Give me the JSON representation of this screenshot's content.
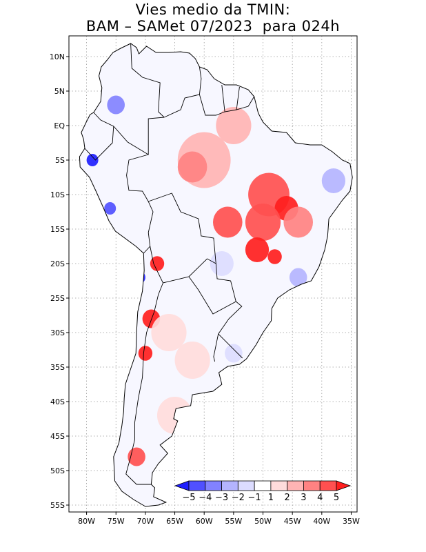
{
  "title": {
    "line1": "Vies medio da TMIN:",
    "line2": "BAM – SAMet 07/2023  para 024h"
  },
  "map": {
    "lon_range": [
      -83,
      -34
    ],
    "lat_range": [
      -56,
      13
    ],
    "grid": "dotted",
    "lon_ticks": [
      {
        "value": -80,
        "label": "80W"
      },
      {
        "value": -75,
        "label": "75W"
      },
      {
        "value": -70,
        "label": "70W"
      },
      {
        "value": -65,
        "label": "65W"
      },
      {
        "value": -60,
        "label": "60W"
      },
      {
        "value": -55,
        "label": "55W"
      },
      {
        "value": -50,
        "label": "50W"
      },
      {
        "value": -45,
        "label": "45W"
      },
      {
        "value": -40,
        "label": "40W"
      },
      {
        "value": -35,
        "label": "35W"
      }
    ],
    "lat_ticks": [
      {
        "value": 10,
        "label": "10N"
      },
      {
        "value": 5,
        "label": "5N"
      },
      {
        "value": 0,
        "label": "EQ"
      },
      {
        "value": -5,
        "label": "5S"
      },
      {
        "value": -10,
        "label": "10S"
      },
      {
        "value": -15,
        "label": "15S"
      },
      {
        "value": -20,
        "label": "20S"
      },
      {
        "value": -25,
        "label": "25S"
      },
      {
        "value": -30,
        "label": "30S"
      },
      {
        "value": -35,
        "label": "35S"
      },
      {
        "value": -40,
        "label": "40S"
      },
      {
        "value": -45,
        "label": "45S"
      },
      {
        "value": -50,
        "label": "50S"
      },
      {
        "value": -55,
        "label": "55S"
      }
    ]
  },
  "colorbar": {
    "labels": [
      "−5",
      "−4",
      "−3",
      "−2",
      "−1",
      "1",
      "2",
      "3",
      "4",
      "5"
    ],
    "colors": [
      "#1e1eff",
      "#5050ff",
      "#8282ff",
      "#b4b4ff",
      "#dcdcff",
      "#ffffff",
      "#ffdcdc",
      "#ffb4b4",
      "#ff8282",
      "#ff5050",
      "#ff1e1e"
    ]
  },
  "bias_patches": [
    {
      "lon": -60,
      "lat": -5,
      "r": 4.5,
      "level": 7
    },
    {
      "lon": -62,
      "lat": -6,
      "r": 2.5,
      "level": 8
    },
    {
      "lon": -55,
      "lat": 0,
      "r": 3,
      "level": 7
    },
    {
      "lon": -49,
      "lat": -10,
      "r": 3.5,
      "level": 9
    },
    {
      "lon": -46,
      "lat": -12,
      "r": 2,
      "level": 10
    },
    {
      "lon": -50,
      "lat": -14,
      "r": 3,
      "level": 9
    },
    {
      "lon": -56,
      "lat": -14,
      "r": 2.5,
      "level": 9
    },
    {
      "lon": -51,
      "lat": -18,
      "r": 2,
      "level": 10
    },
    {
      "lon": -48,
      "lat": -19,
      "r": 1.2,
      "level": 10
    },
    {
      "lon": -44,
      "lat": -14,
      "r": 2.5,
      "level": 8
    },
    {
      "lon": -68,
      "lat": -20,
      "r": 1.2,
      "level": 10
    },
    {
      "lon": -69,
      "lat": -28,
      "r": 1.5,
      "level": 10
    },
    {
      "lon": -70,
      "lat": -33,
      "r": 1.2,
      "level": 10
    },
    {
      "lon": -71.5,
      "lat": -48,
      "r": 1.5,
      "level": 9
    },
    {
      "lon": -66,
      "lat": -30,
      "r": 3,
      "level": 6
    },
    {
      "lon": -62,
      "lat": -34,
      "r": 3,
      "level": 6
    },
    {
      "lon": -65,
      "lat": -42,
      "r": 3,
      "level": 6
    },
    {
      "lon": -79,
      "lat": -5,
      "r": 1,
      "level": 0
    },
    {
      "lon": -76,
      "lat": -12,
      "r": 1,
      "level": 1
    },
    {
      "lon": -71,
      "lat": -22,
      "r": 1,
      "level": 0
    },
    {
      "lon": -75,
      "lat": 3,
      "r": 1.5,
      "level": 2
    },
    {
      "lon": -38,
      "lat": -8,
      "r": 2,
      "level": 3
    },
    {
      "lon": -44,
      "lat": -22,
      "r": 1.5,
      "level": 3
    },
    {
      "lon": -57,
      "lat": -20,
      "r": 2,
      "level": 4
    },
    {
      "lon": -55,
      "lat": -33,
      "r": 1.5,
      "level": 4
    }
  ]
}
